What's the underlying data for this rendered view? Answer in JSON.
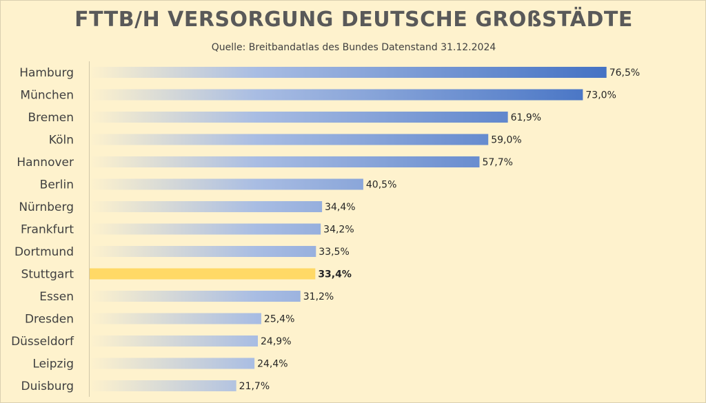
{
  "chart_data": {
    "type": "bar",
    "orientation": "horizontal",
    "title": "FTTB/H VERSORGUNG DEUTSCHE GROßSTÄDTE",
    "subtitle": "Quelle: Breitbandatlas des Bundes Datenstand 31.12.2024",
    "categories": [
      "Hamburg",
      "München",
      "Bremen",
      "Köln",
      "Hannover",
      "Berlin",
      "Nürnberg",
      "Frankfurt",
      "Dortmund",
      "Stuttgart",
      "Essen",
      "Dresden",
      "Düsseldorf",
      "Leipzig",
      "Duisburg"
    ],
    "values": [
      76.5,
      73.0,
      61.9,
      59.0,
      57.7,
      40.5,
      34.4,
      34.2,
      33.5,
      33.4,
      31.2,
      25.4,
      24.9,
      24.4,
      21.7
    ],
    "value_labels": [
      "76,5%",
      "73,0%",
      "61,9%",
      "59,0%",
      "57,7%",
      "40,5%",
      "34,4%",
      "34,2%",
      "33,5%",
      "33,4%",
      "31,2%",
      "25,4%",
      "24,9%",
      "24,4%",
      "21,7%"
    ],
    "highlight": "Stuttgart",
    "xlim": [
      0,
      100
    ],
    "grid": false,
    "legend": "none",
    "xlabel": "",
    "ylabel": ""
  },
  "colors": {
    "background": "#fef2cd",
    "bar_start": "#fef2cd",
    "bar_end": "#4472c4",
    "highlight": "#ffd966",
    "title": "#595959",
    "text": "#262626"
  }
}
